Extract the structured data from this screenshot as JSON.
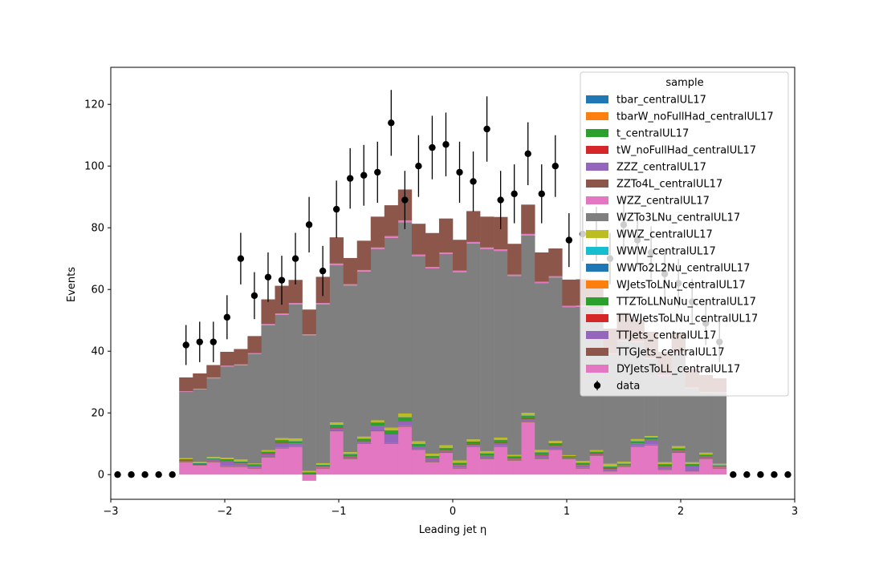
{
  "chart_data": {
    "type": "bar",
    "stacked": true,
    "xlabel": "Leading jet  η",
    "ylabel": "Events",
    "xlim": [
      -3,
      3
    ],
    "ylim": [
      -8,
      132
    ],
    "xticks": [
      -3,
      -2,
      -1,
      0,
      1,
      2,
      3
    ],
    "xtick_labels": [
      "−3",
      "−2",
      "−1",
      "0",
      "1",
      "2",
      "3"
    ],
    "yticks": [
      0,
      20,
      40,
      60,
      80,
      100,
      120
    ],
    "yticks_labels": [
      "0",
      "20",
      "40",
      "60",
      "80",
      "100",
      "120"
    ],
    "legend_title": "sample",
    "legend_position": "upper-right",
    "bin_edges": [
      -2.4,
      -2.28,
      -2.16,
      -2.04,
      -1.92,
      -1.8,
      -1.68,
      -1.56,
      -1.44,
      -1.32,
      -1.2,
      -1.08,
      -0.96,
      -0.84,
      -0.72,
      -0.6,
      -0.48,
      -0.36,
      -0.24,
      -0.12,
      0.0,
      0.12,
      0.24,
      0.36,
      0.48,
      0.6,
      0.72,
      0.84,
      0.96,
      1.08,
      1.2,
      1.32,
      1.44,
      1.56,
      1.68,
      1.8,
      1.92,
      2.04,
      2.16,
      2.28,
      2.4
    ],
    "series": [
      {
        "name": "DYJetsToLL_centralUL17",
        "color": "#e377c2",
        "values": [
          4.0,
          3.0,
          4.0,
          2.5,
          2.5,
          2.0,
          5.5,
          8.5,
          9.0,
          -2.0,
          2.0,
          14.0,
          5.0,
          10.0,
          14.0,
          10.0,
          15.5,
          8.0,
          4.0,
          7.0,
          2.0,
          9.0,
          5.0,
          9.0,
          4.5,
          17.0,
          5.0,
          8.0,
          5.0,
          2.0,
          6.0,
          1.0,
          2.5,
          9.0,
          9.5,
          1.5,
          7.0,
          1.0,
          5.0,
          2.0
        ]
      },
      {
        "name": "TTGJets_centralUL17",
        "color": "#8c564b",
        "values": [
          0.2,
          0.2,
          0.2,
          0.2,
          0.2,
          0.2,
          0.2,
          0.2,
          0.2,
          0.2,
          0.2,
          0.2,
          0.2,
          0.2,
          0.2,
          0.2,
          0.2,
          0.2,
          0.2,
          0.2,
          0.2,
          0.2,
          0.2,
          0.2,
          0.2,
          0.2,
          0.2,
          0.2,
          0.2,
          0.2,
          0.2,
          0.2,
          0.2,
          0.2,
          0.2,
          0.2,
          0.2,
          0.2,
          0.2,
          0.2
        ]
      },
      {
        "name": "TTJets_centralUL17",
        "color": "#9467bd",
        "values": [
          0.3,
          0.0,
          0.5,
          1.5,
          0.8,
          0.5,
          1.0,
          1.5,
          0.8,
          0.0,
          0.3,
          0.8,
          0.5,
          0.5,
          1.5,
          3.0,
          1.5,
          0.8,
          1.0,
          0.5,
          0.8,
          0.5,
          0.8,
          1.0,
          0.4,
          0.8,
          1.0,
          1.0,
          0.3,
          0.8,
          0.5,
          0.7,
          0.2,
          0.8,
          1.5,
          0.8,
          0.5,
          1.5,
          0.5,
          0.3
        ]
      },
      {
        "name": "TTWJetsToLNu_centralUL17",
        "color": "#d62728",
        "values": [
          0.1,
          0.1,
          0.1,
          0.1,
          0.1,
          0.1,
          0.1,
          0.1,
          0.1,
          0.1,
          0.1,
          0.1,
          0.1,
          0.1,
          0.1,
          0.1,
          0.1,
          0.1,
          0.1,
          0.1,
          0.1,
          0.1,
          0.1,
          0.1,
          0.1,
          0.1,
          0.1,
          0.1,
          0.1,
          0.1,
          0.1,
          0.1,
          0.1,
          0.1,
          0.1,
          0.1,
          0.1,
          0.1,
          0.1,
          0.1
        ]
      },
      {
        "name": "TTZToLLNuNu_centralUL17",
        "color": "#2ca02c",
        "values": [
          0.3,
          0.3,
          0.4,
          0.6,
          0.5,
          0.4,
          0.6,
          0.8,
          0.7,
          0.3,
          0.5,
          1.0,
          0.8,
          0.7,
          1.0,
          1.0,
          1.2,
          0.8,
          0.7,
          0.8,
          0.6,
          0.8,
          0.7,
          0.9,
          0.6,
          1.0,
          0.8,
          0.8,
          0.3,
          0.6,
          0.6,
          0.6,
          0.5,
          0.7,
          0.6,
          0.7,
          0.6,
          0.6,
          0.6,
          0.4
        ]
      },
      {
        "name": "WJetsToLNu_centralUL17",
        "color": "#ff7f0e",
        "values": [
          0.0,
          0.0,
          0.0,
          0.0,
          0.0,
          0.0,
          0.0,
          0.0,
          0.0,
          0.0,
          0.0,
          0.0,
          0.0,
          0.0,
          0.0,
          0.0,
          0.0,
          0.0,
          0.0,
          0.0,
          0.0,
          0.0,
          0.0,
          0.0,
          0.0,
          0.0,
          0.0,
          0.0,
          0.0,
          0.0,
          0.0,
          0.0,
          0.0,
          0.0,
          0.0,
          0.0,
          0.0,
          0.0,
          0.0,
          0.0
        ]
      },
      {
        "name": "WWTo2L2Nu_centralUL17",
        "color": "#1f77b4",
        "values": [
          0.1,
          0.1,
          0.1,
          0.1,
          0.1,
          0.1,
          0.1,
          0.1,
          0.1,
          0.1,
          0.1,
          0.1,
          0.1,
          0.1,
          0.1,
          0.1,
          0.1,
          0.1,
          0.1,
          0.1,
          0.1,
          0.1,
          0.1,
          0.1,
          0.1,
          0.1,
          0.1,
          0.1,
          0.1,
          0.1,
          0.1,
          0.1,
          0.1,
          0.1,
          0.1,
          0.1,
          0.1,
          0.1,
          0.1,
          0.1
        ]
      },
      {
        "name": "WWW_centralUL17",
        "color": "#17becf",
        "values": [
          0.0,
          0.0,
          0.0,
          0.0,
          0.0,
          0.0,
          0.0,
          0.0,
          0.0,
          0.0,
          0.0,
          0.0,
          0.0,
          0.0,
          0.0,
          0.0,
          0.0,
          0.0,
          0.0,
          0.0,
          0.0,
          0.0,
          0.0,
          0.0,
          0.0,
          0.0,
          0.0,
          0.0,
          0.0,
          0.0,
          0.0,
          0.0,
          0.0,
          0.0,
          0.0,
          0.0,
          0.0,
          0.0,
          0.0,
          0.0
        ]
      },
      {
        "name": "WWZ_centralUL17",
        "color": "#bcbd22",
        "values": [
          0.3,
          0.4,
          0.4,
          0.5,
          0.7,
          0.3,
          0.4,
          0.6,
          0.8,
          0.5,
          0.5,
          0.7,
          0.6,
          0.7,
          0.7,
          0.8,
          1.2,
          0.8,
          0.7,
          0.8,
          0.8,
          0.7,
          0.7,
          0.7,
          0.5,
          0.8,
          0.8,
          0.7,
          0.3,
          0.6,
          0.4,
          0.8,
          0.6,
          0.6,
          0.5,
          0.6,
          0.7,
          0.5,
          0.6,
          0.4
        ]
      },
      {
        "name": "WZTo3LNu_centralUL17",
        "color": "#7f7f7f",
        "values": [
          21.5,
          23.5,
          25.5,
          29.5,
          30.5,
          35.5,
          40.5,
          40.0,
          43.5,
          44.0,
          51.5,
          51.0,
          54.0,
          53.5,
          55.5,
          61.5,
          62.0,
          60.0,
          60.0,
          62.0,
          61.0,
          63.5,
          65.5,
          60.5,
          58.0,
          57.5,
          54.0,
          53.0,
          48.0,
          50.0,
          46.0,
          35.5,
          39.0,
          31.5,
          25.0,
          28.0,
          30.0,
          24.0,
          19.5,
          23.0
        ]
      },
      {
        "name": "WZZ_centralUL17",
        "color": "#e377c2",
        "values": [
          0.2,
          0.2,
          0.3,
          0.3,
          0.3,
          0.3,
          0.4,
          0.4,
          0.4,
          0.3,
          0.4,
          0.5,
          0.4,
          0.5,
          0.5,
          0.6,
          0.6,
          0.5,
          0.5,
          0.5,
          0.5,
          0.5,
          0.5,
          0.5,
          0.4,
          0.5,
          0.5,
          0.4,
          0.4,
          0.4,
          0.3,
          0.3,
          0.3,
          0.3,
          0.3,
          0.3,
          0.3,
          0.2,
          0.2,
          0.2
        ]
      },
      {
        "name": "ZZTo4L_centralUL17",
        "color": "#8c564b",
        "values": [
          4.5,
          5.0,
          4.0,
          4.5,
          5.0,
          5.5,
          8.0,
          9.0,
          7.5,
          8.0,
          8.5,
          8.5,
          8.5,
          9.5,
          10.0,
          10.0,
          10.0,
          10.0,
          11.0,
          11.0,
          10.0,
          10.0,
          10.0,
          10.5,
          10.0,
          9.5,
          9.5,
          9.0,
          8.5,
          8.5,
          9.0,
          8.0,
          9.0,
          7.0,
          8.5,
          7.5,
          6.5,
          6.0,
          5.5,
          4.5
        ]
      },
      {
        "name": "ZZZ_centralUL17",
        "color": "#9467bd",
        "values": [
          0.0,
          0.0,
          0.0,
          0.0,
          0.0,
          0.0,
          0.0,
          0.0,
          0.0,
          0.0,
          0.0,
          0.0,
          0.0,
          0.0,
          0.0,
          0.0,
          0.0,
          0.0,
          0.0,
          0.0,
          0.0,
          0.0,
          0.0,
          0.0,
          0.0,
          0.0,
          0.0,
          0.0,
          0.0,
          0.0,
          0.0,
          0.0,
          0.0,
          0.0,
          0.0,
          0.0,
          0.0,
          0.0,
          0.0,
          0.0
        ]
      },
      {
        "name": "tW_noFullHad_centralUL17",
        "color": "#d62728",
        "values": [
          0.0,
          0.0,
          0.0,
          0.0,
          0.0,
          0.0,
          0.0,
          0.0,
          0.0,
          0.0,
          0.0,
          0.0,
          0.0,
          0.0,
          0.0,
          0.0,
          0.0,
          0.0,
          0.0,
          0.0,
          0.0,
          0.0,
          0.0,
          0.0,
          0.0,
          0.0,
          0.0,
          0.0,
          0.0,
          0.0,
          0.0,
          0.0,
          0.0,
          0.0,
          0.0,
          0.0,
          0.0,
          0.0,
          0.0,
          0.0
        ]
      },
      {
        "name": "t_centralUL17",
        "color": "#2ca02c",
        "values": [
          0.0,
          0.0,
          0.0,
          0.0,
          0.0,
          0.0,
          0.0,
          0.0,
          0.0,
          0.0,
          0.0,
          0.0,
          0.0,
          0.0,
          0.0,
          0.0,
          0.0,
          0.0,
          0.0,
          0.0,
          0.0,
          0.0,
          0.0,
          0.0,
          0.0,
          0.0,
          0.0,
          0.0,
          0.0,
          0.0,
          0.0,
          0.0,
          0.0,
          0.0,
          0.0,
          0.0,
          0.0,
          0.0,
          0.0,
          0.0
        ]
      },
      {
        "name": "tbarW_noFullHad_centralUL17",
        "color": "#ff7f0e",
        "values": [
          0.0,
          0.0,
          0.0,
          0.0,
          0.0,
          0.0,
          0.0,
          0.0,
          0.0,
          0.0,
          0.0,
          0.0,
          0.0,
          0.0,
          0.0,
          0.0,
          0.0,
          0.0,
          0.0,
          0.0,
          0.0,
          0.0,
          0.0,
          0.0,
          0.0,
          0.0,
          0.0,
          0.0,
          0.0,
          0.0,
          0.0,
          0.0,
          0.0,
          0.0,
          0.0,
          0.0,
          0.0,
          0.0,
          0.0,
          0.0
        ]
      },
      {
        "name": "tbar_centralUL17",
        "color": "#1f77b4",
        "values": [
          0.0,
          0.0,
          0.0,
          0.0,
          0.0,
          0.0,
          0.0,
          0.0,
          0.0,
          0.0,
          0.0,
          0.0,
          0.0,
          0.0,
          0.0,
          0.0,
          0.0,
          0.0,
          0.0,
          0.0,
          0.0,
          0.0,
          0.0,
          0.0,
          0.0,
          0.0,
          0.0,
          0.0,
          0.0,
          0.0,
          0.0,
          0.0,
          0.0,
          0.0,
          0.0,
          0.0,
          0.0,
          0.0,
          0.0,
          0.0
        ]
      }
    ],
    "data": {
      "name": "data",
      "x": [
        -2.94,
        -2.82,
        -2.7,
        -2.58,
        -2.46,
        -2.34,
        -2.22,
        -2.1,
        -1.98,
        -1.86,
        -1.74,
        -1.62,
        -1.5,
        -1.38,
        -1.26,
        -1.14,
        -1.02,
        -0.9,
        -0.78,
        -0.66,
        -0.54,
        -0.42,
        -0.3,
        -0.18,
        -0.06,
        0.06,
        0.18,
        0.3,
        0.42,
        0.54,
        0.66,
        0.78,
        0.9,
        1.02,
        1.14,
        1.26,
        1.38,
        1.5,
        1.62,
        1.74,
        1.86,
        1.98,
        2.1,
        2.22,
        2.34,
        2.46,
        2.58,
        2.7,
        2.82,
        2.94
      ],
      "y": [
        0,
        0,
        0,
        0,
        0,
        42,
        43,
        43,
        51,
        70,
        58,
        64,
        63,
        70,
        81,
        66,
        86,
        96,
        97,
        98,
        114,
        89,
        100,
        106,
        107,
        98,
        95,
        112,
        89,
        91,
        104,
        91,
        100,
        76,
        78,
        78,
        70,
        81,
        76,
        72,
        65,
        62,
        56,
        49,
        43,
        0,
        0,
        0,
        0,
        0
      ]
    }
  },
  "legend_order": [
    {
      "label": "tbar_centralUL17",
      "color": "#1f77b4"
    },
    {
      "label": "tbarW_noFullHad_centralUL17",
      "color": "#ff7f0e"
    },
    {
      "label": "t_centralUL17",
      "color": "#2ca02c"
    },
    {
      "label": "tW_noFullHad_centralUL17",
      "color": "#d62728"
    },
    {
      "label": "ZZZ_centralUL17",
      "color": "#9467bd"
    },
    {
      "label": "ZZTo4L_centralUL17",
      "color": "#8c564b"
    },
    {
      "label": "WZZ_centralUL17",
      "color": "#e377c2"
    },
    {
      "label": "WZTo3LNu_centralUL17",
      "color": "#7f7f7f"
    },
    {
      "label": "WWZ_centralUL17",
      "color": "#bcbd22"
    },
    {
      "label": "WWW_centralUL17",
      "color": "#17becf"
    },
    {
      "label": "WWTo2L2Nu_centralUL17",
      "color": "#1f77b4"
    },
    {
      "label": "WJetsToLNu_centralUL17",
      "color": "#ff7f0e"
    },
    {
      "label": "TTZToLLNuNu_centralUL17",
      "color": "#2ca02c"
    },
    {
      "label": "TTWJetsToLNu_centralUL17",
      "color": "#d62728"
    },
    {
      "label": "TTJets_centralUL17",
      "color": "#9467bd"
    },
    {
      "label": "TTGJets_centralUL17",
      "color": "#8c564b"
    },
    {
      "label": "DYJetsToLL_centralUL17",
      "color": "#e377c2"
    }
  ],
  "data_label": "data"
}
